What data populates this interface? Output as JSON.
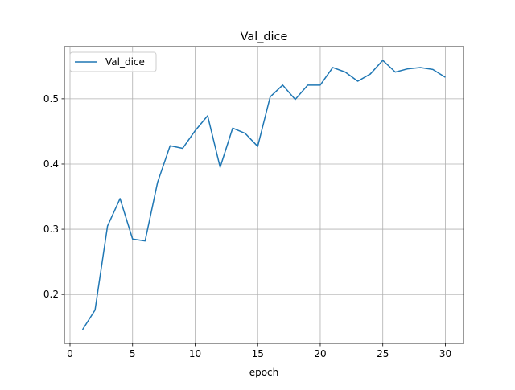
{
  "chart_data": {
    "type": "line",
    "title": "Val_dice",
    "xlabel": "epoch",
    "ylabel": "",
    "xlim": [
      -0.45,
      31.45
    ],
    "ylim": [
      0.125,
      0.58
    ],
    "xticks": [
      0,
      5,
      10,
      15,
      20,
      25,
      30
    ],
    "yticks": [
      0.2,
      0.3,
      0.4,
      0.5
    ],
    "grid": true,
    "legend": {
      "position": "upper-left",
      "entries": [
        "Val_dice"
      ]
    },
    "series": [
      {
        "name": "Val_dice",
        "color": "#1f77b4",
        "x": [
          1,
          2,
          3,
          4,
          5,
          6,
          7,
          8,
          9,
          10,
          11,
          12,
          13,
          14,
          15,
          16,
          17,
          18,
          19,
          20,
          21,
          22,
          23,
          24,
          25,
          26,
          27,
          28,
          29,
          30
        ],
        "values": [
          0.146,
          0.176,
          0.305,
          0.347,
          0.285,
          0.282,
          0.372,
          0.428,
          0.424,
          0.451,
          0.474,
          0.395,
          0.455,
          0.447,
          0.427,
          0.503,
          0.521,
          0.499,
          0.521,
          0.521,
          0.548,
          0.541,
          0.527,
          0.538,
          0.559,
          0.541,
          0.546,
          0.548,
          0.545,
          0.533
        ]
      }
    ]
  }
}
